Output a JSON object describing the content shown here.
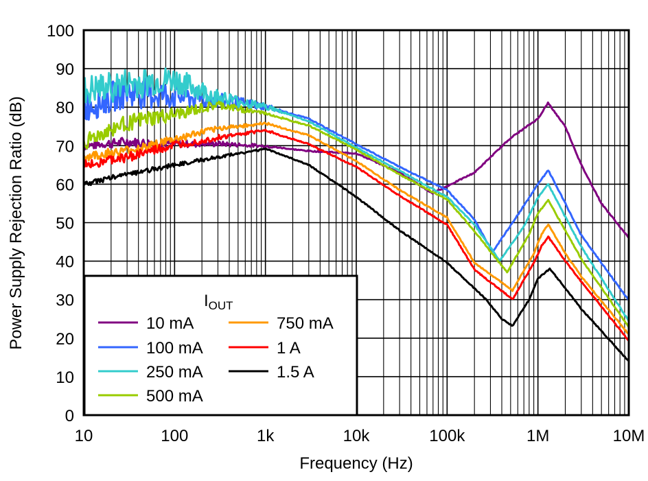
{
  "chart_data": {
    "type": "line",
    "xlabel": "Frequency (Hz)",
    "ylabel": "Power Supply Rejection Ratio (dB)",
    "xscale": "log",
    "xlim": [
      10,
      10000000
    ],
    "ylim": [
      0,
      100
    ],
    "grid": true,
    "xticks": [
      {
        "value": 10,
        "label": "10"
      },
      {
        "value": 100,
        "label": "100"
      },
      {
        "value": 1000,
        "label": "1k"
      },
      {
        "value": 10000,
        "label": "10k"
      },
      {
        "value": 100000,
        "label": "100k"
      },
      {
        "value": 1000000,
        "label": "1M"
      },
      {
        "value": 10000000,
        "label": "10M"
      }
    ],
    "yticks": [
      0,
      10,
      20,
      30,
      40,
      50,
      60,
      70,
      80,
      90,
      100
    ],
    "legend": {
      "title_main": "I",
      "title_sub": "OUT",
      "placement": "bottom-left"
    },
    "series": [
      {
        "name": "10 mA",
        "color": "#800080",
        "x": [
          10,
          30,
          100,
          300,
          1000,
          3000,
          10000,
          30000,
          69000,
          200000,
          500000,
          1000000,
          1290000,
          2000000,
          3000000,
          5000000,
          10000000
        ],
        "y": [
          70,
          71,
          70.5,
          70.5,
          69.9,
          68.6,
          68,
          63,
          57.6,
          63,
          72,
          77,
          81.1,
          75,
          65,
          55,
          46
        ]
      },
      {
        "name": "100 mA",
        "color": "#3366FF",
        "x": [
          10,
          30,
          100,
          300,
          1000,
          3000,
          10000,
          30000,
          100000,
          200000,
          316000,
          600000,
          1000000,
          1300000,
          2000000,
          3000000,
          10000000
        ],
        "y": [
          80,
          84,
          83,
          81.7,
          80.2,
          77,
          70.4,
          64.5,
          58.5,
          50.8,
          42.4,
          52,
          60,
          63.6,
          55,
          46.7,
          29.8
        ]
      },
      {
        "name": "250 mA",
        "color": "#33CCCC",
        "x": [
          10,
          30,
          100,
          300,
          1000,
          3000,
          10000,
          30000,
          100000,
          200000,
          380000,
          700000,
          1000000,
          1300000,
          2000000,
          3000000,
          10000000
        ],
        "y": [
          84,
          86,
          87,
          82.5,
          80.2,
          76.3,
          69.5,
          63.5,
          56.7,
          49.5,
          40.1,
          49,
          56.5,
          60,
          51.5,
          43.7,
          24.4
        ]
      },
      {
        "name": "500 mA",
        "color": "#99CC00",
        "x": [
          10,
          30,
          100,
          300,
          1000,
          3000,
          10000,
          30000,
          100000,
          200000,
          457000,
          800000,
          1000000,
          1300000,
          2000000,
          3000000,
          10000000
        ],
        "y": [
          71,
          76,
          78,
          80.5,
          78.4,
          75.2,
          69,
          62.5,
          56,
          47.8,
          37.1,
          47,
          52.5,
          55.8,
          48,
          40.6,
          22.8
        ]
      },
      {
        "name": "750 mA",
        "color": "#FF9900",
        "x": [
          10,
          30,
          100,
          300,
          1000,
          3000,
          10000,
          30000,
          100000,
          200000,
          525000,
          900000,
          1100000,
          1300000,
          2000000,
          3000000,
          10000000
        ],
        "y": [
          67,
          68.6,
          71.6,
          74.5,
          75.8,
          72.7,
          66,
          58.5,
          51.3,
          39.6,
          32.4,
          42,
          47,
          49.6,
          42,
          36,
          21
        ]
      },
      {
        "name": "1 A",
        "color": "#FF0000",
        "x": [
          10,
          30,
          100,
          300,
          1000,
          3000,
          10000,
          30000,
          100000,
          200000,
          525000,
          900000,
          1100000,
          1300000,
          2000000,
          3000000,
          10000000
        ],
        "y": [
          65,
          67,
          70,
          72,
          74,
          70.4,
          64.5,
          57,
          49.5,
          37.8,
          30.1,
          39.5,
          44,
          46.3,
          40,
          34.7,
          19.3
        ]
      },
      {
        "name": "1.5 A",
        "color": "#000000",
        "x": [
          10,
          30,
          100,
          300,
          1000,
          3000,
          10000,
          30000,
          100000,
          263000,
          400000,
          525000,
          800000,
          1000000,
          1350000,
          2000000,
          3000000,
          10000000
        ],
        "y": [
          60,
          62.6,
          65,
          67,
          69.2,
          65,
          56.7,
          48,
          39.6,
          30.3,
          25,
          23.2,
          30,
          35.5,
          38,
          33,
          27.6,
          14
        ]
      }
    ]
  }
}
